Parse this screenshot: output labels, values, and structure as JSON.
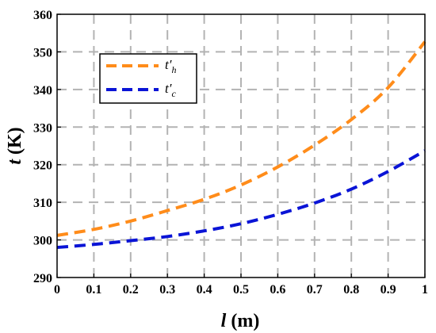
{
  "chart_data": {
    "type": "line",
    "xlabel_var": "l",
    "xlabel_unit": "(m)",
    "ylabel_var": "t",
    "ylabel_unit": "(K)",
    "xlim": [
      0,
      1
    ],
    "ylim": [
      290,
      360
    ],
    "xticks": [
      0,
      0.1,
      0.2,
      0.3,
      0.4,
      0.5,
      0.6,
      0.7,
      0.8,
      0.9,
      1
    ],
    "xtick_labels": [
      "0",
      "0.1",
      "0.2",
      "0.3",
      "0.4",
      "0.5",
      "0.6",
      "0.7",
      "0.8",
      "0.9",
      "1"
    ],
    "yticks": [
      290,
      300,
      310,
      320,
      330,
      340,
      350,
      360
    ],
    "ytick_labels": [
      "290",
      "300",
      "310",
      "320",
      "330",
      "340",
      "350",
      "360"
    ],
    "grid": true,
    "grid_style": "dashed",
    "legend_position": "upper-left",
    "x": [
      0,
      0.1,
      0.2,
      0.3,
      0.4,
      0.5,
      0.6,
      0.7,
      0.8,
      0.9,
      1.0
    ],
    "series": [
      {
        "name": "t′h",
        "symbol": "t′",
        "subscript": "h",
        "color": "#FF8C1A",
        "values": [
          301.2,
          302.8,
          305.0,
          307.8,
          310.8,
          314.6,
          319.4,
          325.2,
          332.0,
          340.5,
          352.7
        ]
      },
      {
        "name": "t′c",
        "symbol": "t′",
        "subscript": "c",
        "color": "#0A14D6",
        "values": [
          298.0,
          298.8,
          299.8,
          300.9,
          302.4,
          304.3,
          306.8,
          309.8,
          313.5,
          318.2,
          323.7
        ]
      }
    ]
  }
}
